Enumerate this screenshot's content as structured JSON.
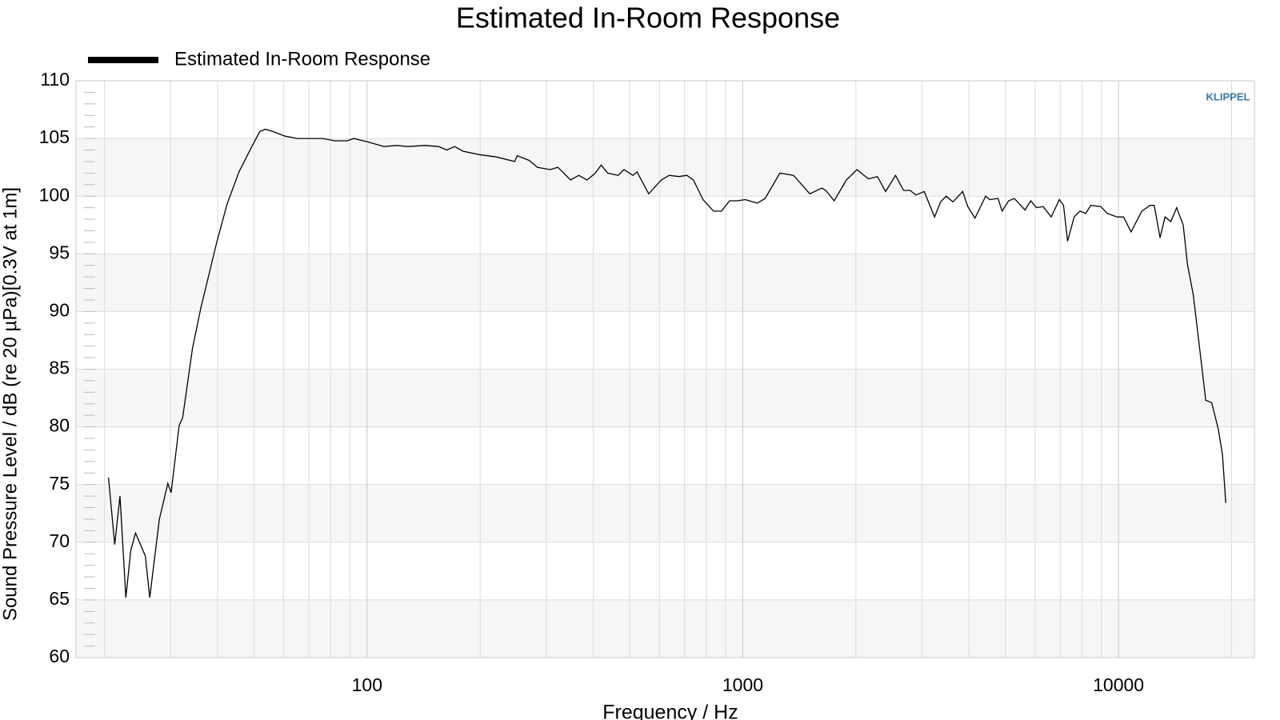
{
  "chart_data": {
    "type": "line",
    "title": "Estimated In-Room Response",
    "x_label": "Frequency / Hz",
    "y_label": "Sound Pressure Level / dB (re 20 µPa)[0.3V at 1m]",
    "watermark": "KLIPPEL",
    "log_x": true,
    "grid": true,
    "legend": "top-left",
    "xlim": [
      16.8,
      23000
    ],
    "xticks": [
      100,
      1000,
      10000
    ],
    "ylim": [
      60,
      110
    ],
    "yticks": [
      60,
      65,
      70,
      75,
      80,
      85,
      90,
      95,
      100,
      105,
      110
    ],
    "x": [
      20.5,
      21.3,
      22.0,
      22.8,
      23.5,
      24.2,
      25.7,
      26.4,
      28.0,
      29.5,
      30.1,
      31.6,
      32.3,
      34.3,
      36.1,
      39.8,
      42.4,
      45.6,
      49.0,
      51.8,
      53.6,
      56.2,
      60.5,
      65.3,
      76.1,
      82.1,
      88.6,
      92.2,
      100.5,
      111,
      120,
      128,
      143,
      155,
      163,
      171,
      180,
      199,
      221,
      247,
      251,
      270,
      284,
      307,
      322,
      348,
      366,
      385,
      405,
      420,
      437,
      466,
      483,
      510,
      523,
      562,
      607,
      637,
      676,
      710,
      739,
      784,
      836,
      878,
      922,
      967,
      1015,
      1093,
      1147,
      1255,
      1365,
      1508,
      1623,
      1664,
      1751,
      1887,
      2012,
      2084,
      2160,
      2283,
      2400,
      2550,
      2680,
      2790,
      2890,
      3040,
      3240,
      3360,
      3480,
      3625,
      3850,
      3970,
      4150,
      4430,
      4540,
      4780,
      4900,
      5100,
      5280,
      5640,
      5840,
      6050,
      6300,
      6620,
      6960,
      7140,
      7320,
      7620,
      7900,
      8180,
      8440,
      8970,
      9340,
      9920,
      10320,
      10800,
      11540,
      12140,
      12450,
      12900,
      13300,
      13780,
      14280,
      14870,
      15260,
      15820,
      17070,
      17700,
      18440,
      18910,
      19300
    ],
    "series": [
      {
        "name": "Estimated In-Room Response",
        "color": "#000000",
        "values": [
          75.6,
          69.8,
          74.0,
          65.2,
          69.3,
          70.8,
          68.8,
          65.2,
          72.0,
          75.1,
          74.3,
          80.1,
          80.8,
          86.8,
          90.3,
          96.0,
          99.3,
          102.1,
          104.1,
          105.6,
          105.8,
          105.6,
          105.2,
          105.0,
          105.0,
          104.8,
          104.8,
          105.0,
          104.7,
          104.3,
          104.4,
          104.3,
          104.4,
          104.3,
          104.0,
          104.3,
          103.9,
          103.6,
          103.4,
          103.0,
          103.5,
          103.1,
          102.5,
          102.3,
          102.5,
          101.4,
          101.8,
          101.4,
          102.0,
          102.7,
          102.0,
          101.8,
          102.3,
          101.8,
          102.1,
          100.2,
          101.4,
          101.8,
          101.7,
          101.8,
          101.4,
          99.7,
          98.7,
          98.7,
          99.6,
          99.6,
          99.7,
          99.4,
          99.8,
          102.0,
          101.8,
          100.2,
          100.7,
          100.5,
          99.6,
          101.4,
          102.3,
          101.9,
          101.5,
          101.7,
          100.4,
          101.8,
          100.5,
          100.5,
          100.1,
          100.4,
          98.2,
          99.5,
          100.0,
          99.5,
          100.4,
          99.1,
          98.1,
          100.0,
          99.7,
          99.8,
          98.7,
          99.6,
          99.8,
          98.8,
          99.6,
          99.0,
          99.1,
          98.2,
          99.7,
          99.2,
          96.1,
          98.2,
          98.7,
          98.5,
          99.2,
          99.1,
          98.5,
          98.2,
          98.2,
          96.9,
          98.7,
          99.2,
          99.2,
          96.4,
          98.2,
          97.8,
          99.0,
          97.5,
          94.1,
          91.4,
          82.3,
          82.1,
          79.8,
          77.6,
          73.4
        ]
      }
    ]
  }
}
